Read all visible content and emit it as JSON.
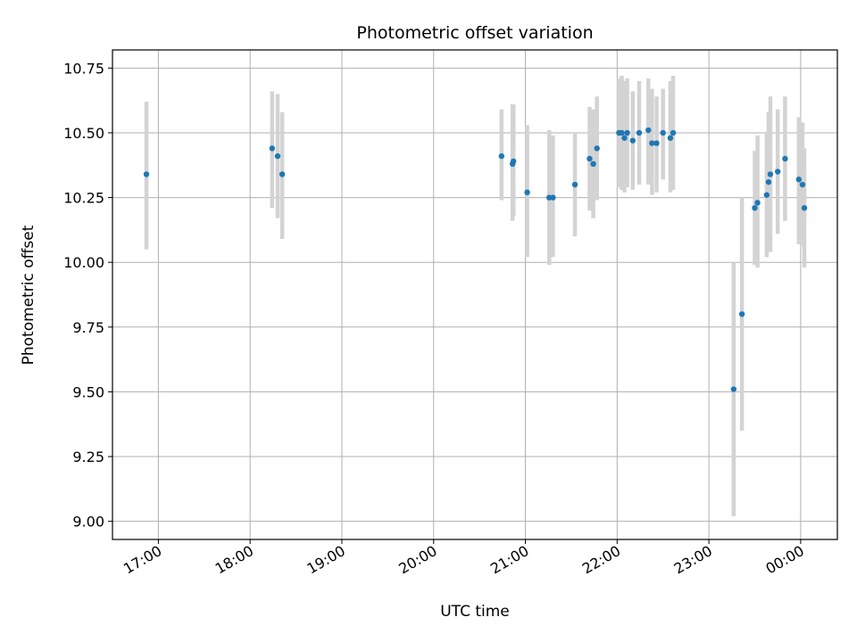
{
  "chart_data": {
    "type": "scatter",
    "title": "Photometric offset variation",
    "xlabel": "UTC time",
    "ylabel": "Photometric offset",
    "x_unit": "hours UTC (values >= 24 wrap past midnight)",
    "xlim": [
      16.5,
      24.4
    ],
    "ylim": [
      8.93,
      10.82
    ],
    "x_ticks": [
      17,
      18,
      19,
      20,
      21,
      22,
      23,
      24
    ],
    "x_tick_labels": [
      "17:00",
      "18:00",
      "19:00",
      "20:00",
      "21:00",
      "22:00",
      "23:00",
      "00:00"
    ],
    "y_ticks": [
      9.0,
      9.25,
      9.5,
      9.75,
      10.0,
      10.25,
      10.5,
      10.75
    ],
    "y_tick_labels": [
      "9.00",
      "9.25",
      "9.50",
      "9.75",
      "10.00",
      "10.25",
      "10.50",
      "10.75"
    ],
    "grid": true,
    "colors": {
      "points": "#1f77b4",
      "errorbars": "#d3d3d3",
      "grid": "#b0b0b0"
    },
    "points": [
      {
        "x": 16.87,
        "y": 10.34,
        "lo": 10.05,
        "hi": 10.62
      },
      {
        "x": 18.24,
        "y": 10.44,
        "lo": 10.21,
        "hi": 10.66
      },
      {
        "x": 18.3,
        "y": 10.41,
        "lo": 10.17,
        "hi": 10.65
      },
      {
        "x": 18.35,
        "y": 10.34,
        "lo": 10.09,
        "hi": 10.58
      },
      {
        "x": 20.74,
        "y": 10.41,
        "lo": 10.24,
        "hi": 10.59
      },
      {
        "x": 20.86,
        "y": 10.38,
        "lo": 10.16,
        "hi": 10.61
      },
      {
        "x": 20.87,
        "y": 10.39,
        "lo": 10.18,
        "hi": 10.61
      },
      {
        "x": 21.02,
        "y": 10.27,
        "lo": 10.02,
        "hi": 10.53
      },
      {
        "x": 21.26,
        "y": 10.25,
        "lo": 9.99,
        "hi": 10.51
      },
      {
        "x": 21.3,
        "y": 10.25,
        "lo": 10.02,
        "hi": 10.49
      },
      {
        "x": 21.54,
        "y": 10.3,
        "lo": 10.1,
        "hi": 10.5
      },
      {
        "x": 21.7,
        "y": 10.4,
        "lo": 10.2,
        "hi": 10.6
      },
      {
        "x": 21.74,
        "y": 10.38,
        "lo": 10.17,
        "hi": 10.59
      },
      {
        "x": 21.78,
        "y": 10.44,
        "lo": 10.24,
        "hi": 10.64
      },
      {
        "x": 22.02,
        "y": 10.5,
        "lo": 10.29,
        "hi": 10.71
      },
      {
        "x": 22.05,
        "y": 10.5,
        "lo": 10.28,
        "hi": 10.72
      },
      {
        "x": 22.08,
        "y": 10.48,
        "lo": 10.27,
        "hi": 10.7
      },
      {
        "x": 22.11,
        "y": 10.5,
        "lo": 10.29,
        "hi": 10.71
      },
      {
        "x": 22.17,
        "y": 10.47,
        "lo": 10.28,
        "hi": 10.66
      },
      {
        "x": 22.24,
        "y": 10.5,
        "lo": 10.3,
        "hi": 10.7
      },
      {
        "x": 22.34,
        "y": 10.51,
        "lo": 10.3,
        "hi": 10.71
      },
      {
        "x": 22.38,
        "y": 10.46,
        "lo": 10.26,
        "hi": 10.67
      },
      {
        "x": 22.43,
        "y": 10.46,
        "lo": 10.27,
        "hi": 10.64
      },
      {
        "x": 22.5,
        "y": 10.5,
        "lo": 10.32,
        "hi": 10.67
      },
      {
        "x": 22.58,
        "y": 10.48,
        "lo": 10.27,
        "hi": 10.7
      },
      {
        "x": 22.61,
        "y": 10.5,
        "lo": 10.28,
        "hi": 10.72
      },
      {
        "x": 23.27,
        "y": 9.51,
        "lo": 9.02,
        "hi": 10.0
      },
      {
        "x": 23.36,
        "y": 9.8,
        "lo": 9.35,
        "hi": 10.25
      },
      {
        "x": 23.5,
        "y": 10.21,
        "lo": 9.99,
        "hi": 10.43
      },
      {
        "x": 23.53,
        "y": 10.23,
        "lo": 9.98,
        "hi": 10.49
      },
      {
        "x": 23.63,
        "y": 10.26,
        "lo": 10.02,
        "hi": 10.5
      },
      {
        "x": 23.65,
        "y": 10.31,
        "lo": 10.04,
        "hi": 10.58
      },
      {
        "x": 23.67,
        "y": 10.34,
        "lo": 10.04,
        "hi": 10.64
      },
      {
        "x": 23.75,
        "y": 10.35,
        "lo": 10.11,
        "hi": 10.59
      },
      {
        "x": 23.83,
        "y": 10.4,
        "lo": 10.16,
        "hi": 10.64
      },
      {
        "x": 23.98,
        "y": 10.32,
        "lo": 10.07,
        "hi": 10.56
      },
      {
        "x": 24.02,
        "y": 10.3,
        "lo": 10.06,
        "hi": 10.54
      },
      {
        "x": 24.04,
        "y": 10.21,
        "lo": 9.98,
        "hi": 10.44
      }
    ]
  }
}
